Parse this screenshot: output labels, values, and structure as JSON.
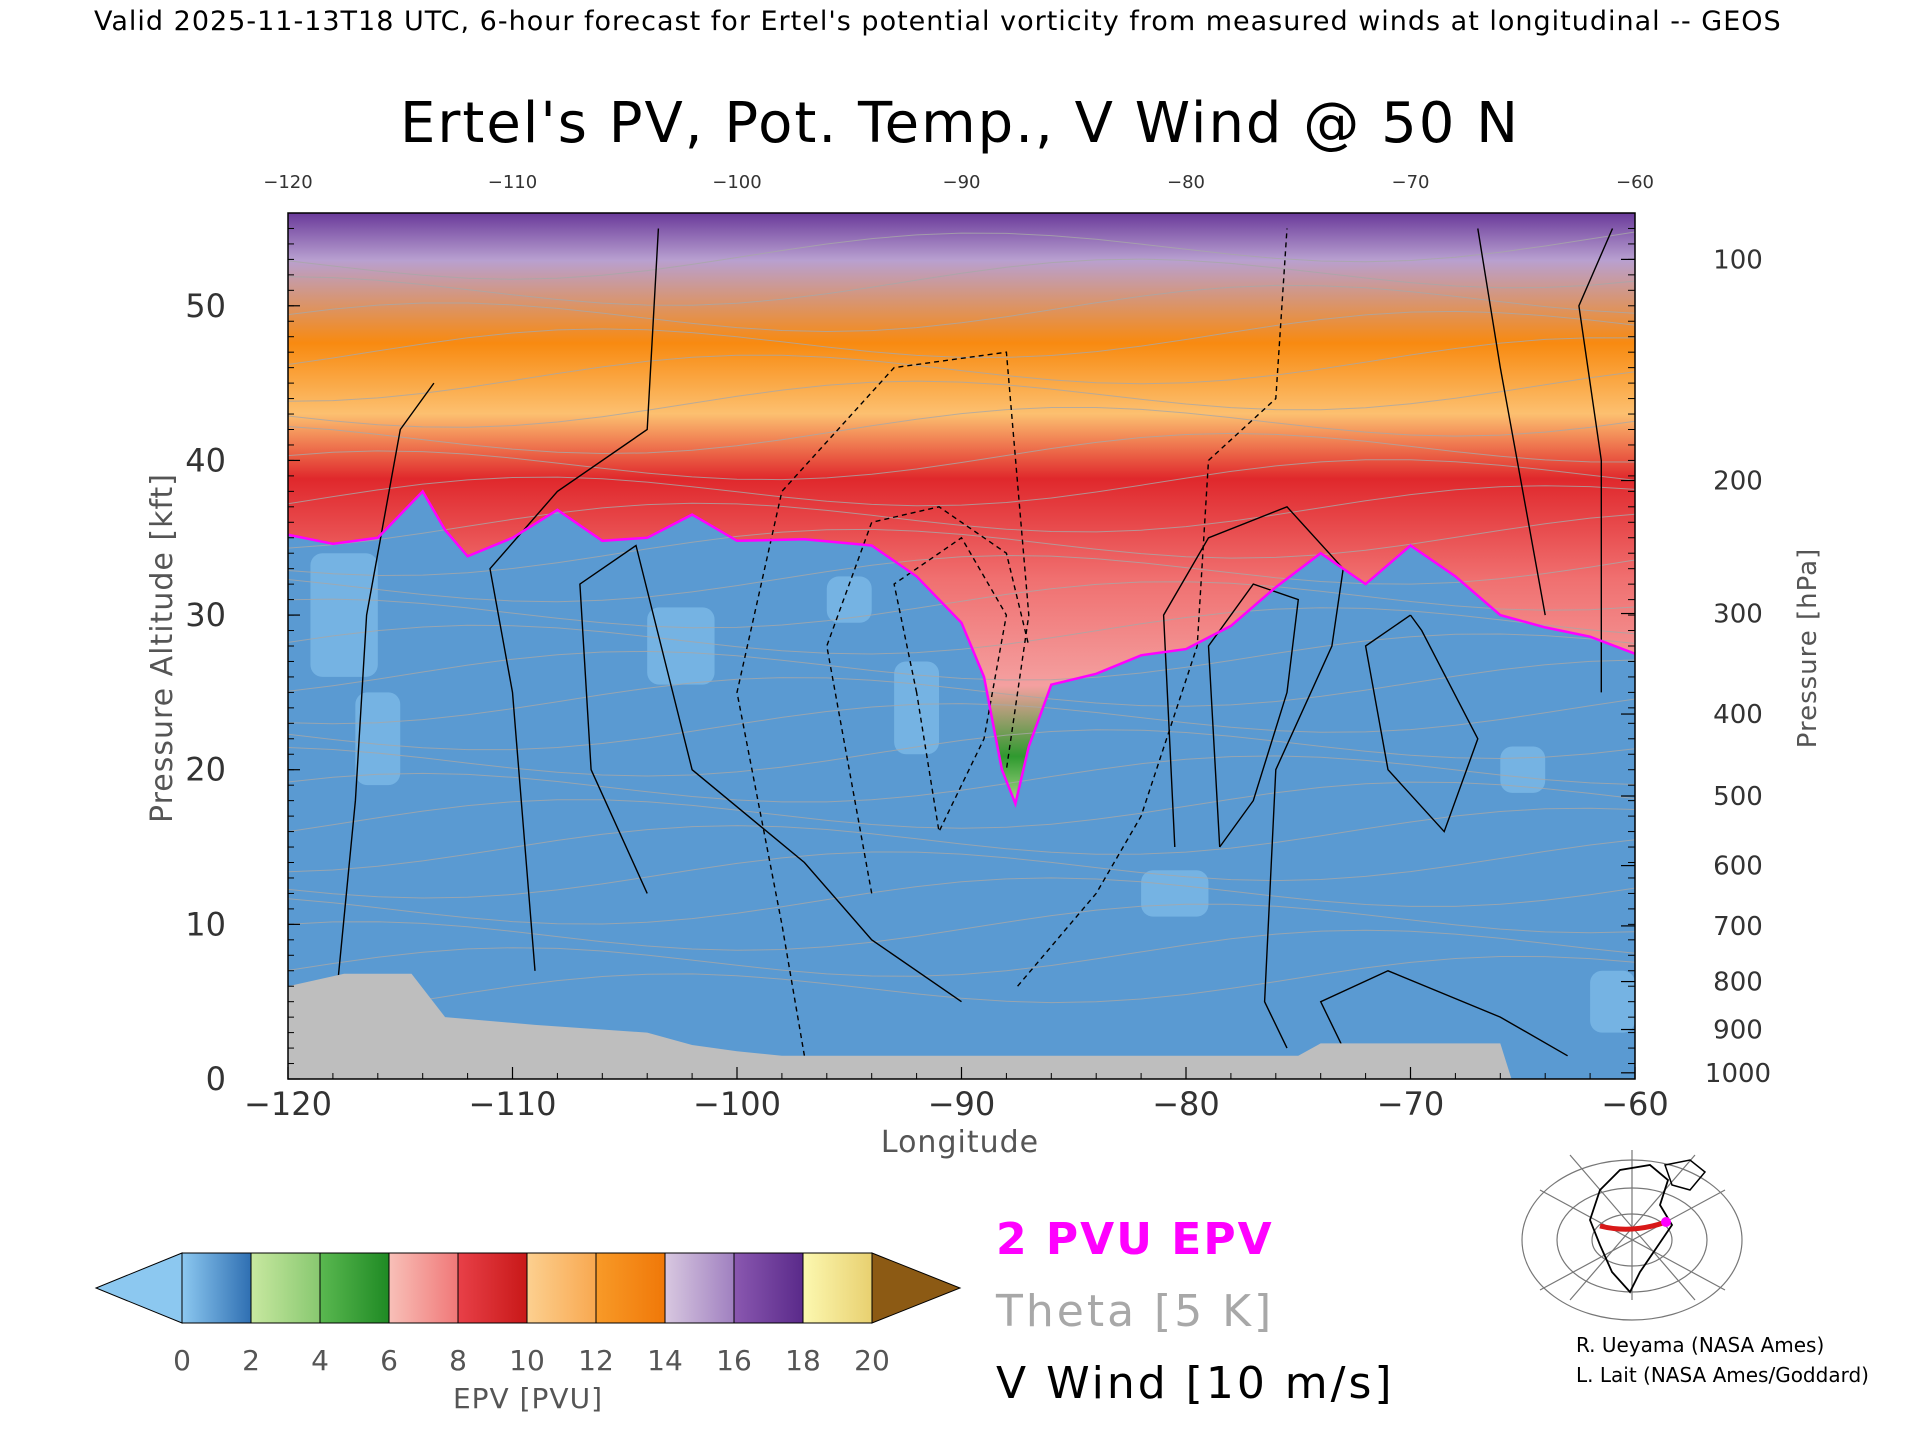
{
  "header_text": "Valid 2025-11-13T18 UTC, 6-hour forecast for Ertel's potential vorticity from measured winds at longitudinal -- GEOS",
  "chart_data": {
    "type": "heatmap",
    "title": "Ertel's PV, Pot. Temp., V Wind @ 50 N",
    "xlabel": "Longitude",
    "ylabel_left": "Pressure Altitude [kft]",
    "ylabel_right": "Pressure [hPa]",
    "xlim": [
      -120,
      -60
    ],
    "ylim_kft": [
      0,
      56
    ],
    "x_ticks": [
      -120,
      -110,
      -100,
      -90,
      -80,
      -70,
      -60
    ],
    "x_ticks_top": [
      -120,
      -110,
      -100,
      -90,
      -80,
      -70,
      -60
    ],
    "y_ticks_kft": [
      0,
      10,
      20,
      30,
      40,
      50
    ],
    "pressure_ticks": [
      {
        "label": "100",
        "kft": 53.0
      },
      {
        "label": "200",
        "kft": 38.7
      },
      {
        "label": "300",
        "kft": 30.1
      },
      {
        "label": "400",
        "kft": 23.6
      },
      {
        "label": "500",
        "kft": 18.3
      },
      {
        "label": "600",
        "kft": 13.8
      },
      {
        "label": "700",
        "kft": 9.9
      },
      {
        "label": "800",
        "kft": 6.3
      },
      {
        "label": "900",
        "kft": 3.2
      },
      {
        "label": "1000",
        "kft": 0.4
      }
    ],
    "tropopause_2pvu_kft": [
      [
        -120,
        35.2
      ],
      [
        -118,
        34.6
      ],
      [
        -116,
        35.0
      ],
      [
        -114,
        38.0
      ],
      [
        -113,
        35.5
      ],
      [
        -112,
        33.8
      ],
      [
        -110,
        35.0
      ],
      [
        -108,
        36.8
      ],
      [
        -106,
        34.8
      ],
      [
        -104,
        35.0
      ],
      [
        -102,
        36.5
      ],
      [
        -100,
        34.8
      ],
      [
        -97,
        34.9
      ],
      [
        -94,
        34.5
      ],
      [
        -92,
        32.5
      ],
      [
        -90,
        29.5
      ],
      [
        -89,
        26.0
      ],
      [
        -88.2,
        20.0
      ],
      [
        -87.6,
        17.8
      ],
      [
        -87,
        21.5
      ],
      [
        -86,
        25.5
      ],
      [
        -84,
        26.2
      ],
      [
        -82,
        27.4
      ],
      [
        -80,
        27.8
      ],
      [
        -78,
        29.3
      ],
      [
        -76,
        31.8
      ],
      [
        -74,
        34.0
      ],
      [
        -72,
        32.0
      ],
      [
        -70,
        34.5
      ],
      [
        -68,
        32.5
      ],
      [
        -66,
        30.0
      ],
      [
        -64,
        29.2
      ],
      [
        -62,
        28.6
      ],
      [
        -60,
        27.5
      ]
    ],
    "terrain_kft": [
      [
        -120,
        6.0
      ],
      [
        -117.5,
        6.8
      ],
      [
        -114.5,
        6.8
      ],
      [
        -113,
        4.0
      ],
      [
        -109,
        3.5
      ],
      [
        -104,
        3.0
      ],
      [
        -102,
        2.2
      ],
      [
        -100,
        1.8
      ],
      [
        -98,
        1.5
      ],
      [
        -96,
        1.5
      ],
      [
        -90,
        1.5
      ],
      [
        -80,
        1.5
      ],
      [
        -75,
        1.5
      ],
      [
        -74,
        2.3
      ],
      [
        -66,
        2.3
      ],
      [
        -65.5,
        0.0
      ]
    ],
    "colorbar": {
      "label": "EPV [PVU]",
      "ticks": [
        0,
        2,
        4,
        6,
        8,
        10,
        12,
        14,
        16,
        18,
        20
      ],
      "colors": [
        "#8cc8f0",
        "#2f6fb2",
        "#a8d888",
        "#2f9a2f",
        "#f2a0a0",
        "#d8282c",
        "#fcc070",
        "#f88a10",
        "#b8a0d0",
        "#6a3a9a",
        "#f2f2a0",
        "#8c5a14"
      ],
      "under_color": "#8cc8f0",
      "over_color": "#8c5a14"
    },
    "legend": [
      {
        "label": "2 PVU EPV",
        "color": "#ff00ff"
      },
      {
        "label": "Theta [5 K]",
        "color": "#a8a8a8"
      },
      {
        "label": "V Wind [10 m/s]",
        "color": "#000000"
      }
    ]
  },
  "credits": [
    "R. Ueyama (NASA Ames)",
    "L. Lait (NASA Ames/Goddard)"
  ],
  "inset_map": {
    "icon": "globe-map-icon"
  }
}
